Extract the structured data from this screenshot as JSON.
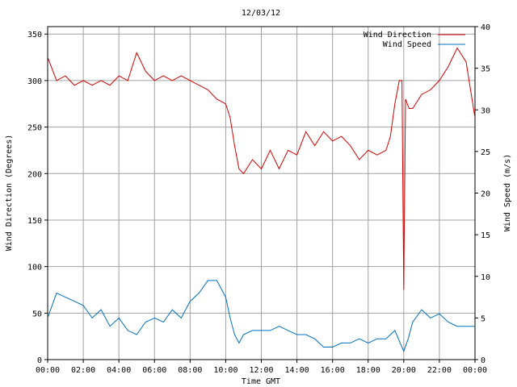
{
  "chart_data": {
    "type": "line",
    "title": "12/03/12",
    "xlabel": "Time GMT",
    "ylabel_left": "Wind Direction (Degrees)",
    "ylabel_right": "Wind Speed (m/s)",
    "x_ticks": [
      "00:00",
      "02:00",
      "04:00",
      "06:00",
      "08:00",
      "10:00",
      "12:00",
      "14:00",
      "16:00",
      "18:00",
      "20:00",
      "22:00",
      "00:00"
    ],
    "y_left_ticks": [
      0,
      50,
      100,
      150,
      200,
      250,
      300,
      350
    ],
    "y_right_ticks": [
      0,
      5,
      10,
      15,
      20,
      25,
      30,
      35,
      40
    ],
    "xlim_hours": [
      0,
      24
    ],
    "ylim_left": [
      0,
      358
    ],
    "ylim_right": [
      0,
      40
    ],
    "grid": true,
    "legend_position": "top-right",
    "series": [
      {
        "name": "Wind Direction",
        "axis": "left",
        "color": "#d40000",
        "x_hours": [
          0,
          0.5,
          1,
          1.5,
          2,
          2.5,
          3,
          3.5,
          4,
          4.5,
          5,
          5.5,
          6,
          6.5,
          7,
          7.5,
          8,
          8.5,
          9,
          9.5,
          10,
          10.25,
          10.5,
          10.75,
          11,
          11.5,
          12,
          12.5,
          13,
          13.5,
          14,
          14.5,
          15,
          15.5,
          16,
          16.5,
          17,
          17.5,
          18,
          18.5,
          19,
          19.25,
          19.5,
          19.75,
          19.9,
          20,
          20.1,
          20.3,
          20.5,
          21,
          21.5,
          22,
          22.5,
          23,
          23.5,
          24
        ],
        "values": [
          325,
          300,
          305,
          295,
          300,
          295,
          300,
          295,
          305,
          300,
          330,
          310,
          300,
          305,
          300,
          305,
          300,
          295,
          290,
          280,
          275,
          260,
          230,
          205,
          200,
          215,
          205,
          225,
          205,
          225,
          220,
          245,
          230,
          245,
          235,
          240,
          230,
          215,
          225,
          220,
          225,
          240,
          275,
          300,
          300,
          75,
          280,
          270,
          270,
          285,
          290,
          300,
          315,
          335,
          320,
          260
        ]
      },
      {
        "name": "Wind Speed",
        "axis": "right",
        "color": "#0070c0",
        "x_hours": [
          0,
          0.5,
          1,
          1.5,
          2,
          2.5,
          3,
          3.5,
          4,
          4.5,
          5,
          5.5,
          6,
          6.5,
          7,
          7.5,
          8,
          8.5,
          9,
          9.5,
          10,
          10.25,
          10.5,
          10.75,
          11,
          11.5,
          12,
          12.5,
          13,
          13.5,
          14,
          14.5,
          15,
          15.5,
          16,
          16.5,
          17,
          17.5,
          18,
          18.5,
          19,
          19.5,
          20,
          20.25,
          20.5,
          21,
          21.5,
          22,
          22.5,
          23,
          23.5,
          24
        ],
        "values": [
          5,
          8,
          7.5,
          7,
          6.5,
          5,
          6,
          4,
          5,
          3.5,
          3,
          4.5,
          5,
          4.5,
          6,
          5,
          7,
          8,
          9.5,
          9.5,
          7.5,
          5,
          3,
          2,
          3,
          3.5,
          3.5,
          3.5,
          4,
          3.5,
          3,
          3,
          2.5,
          1.5,
          1.5,
          2,
          2,
          2.5,
          2,
          2.5,
          2.5,
          3.5,
          1,
          2.5,
          4.5,
          6,
          5,
          5.5,
          4.5,
          4,
          4,
          4
        ]
      }
    ]
  }
}
